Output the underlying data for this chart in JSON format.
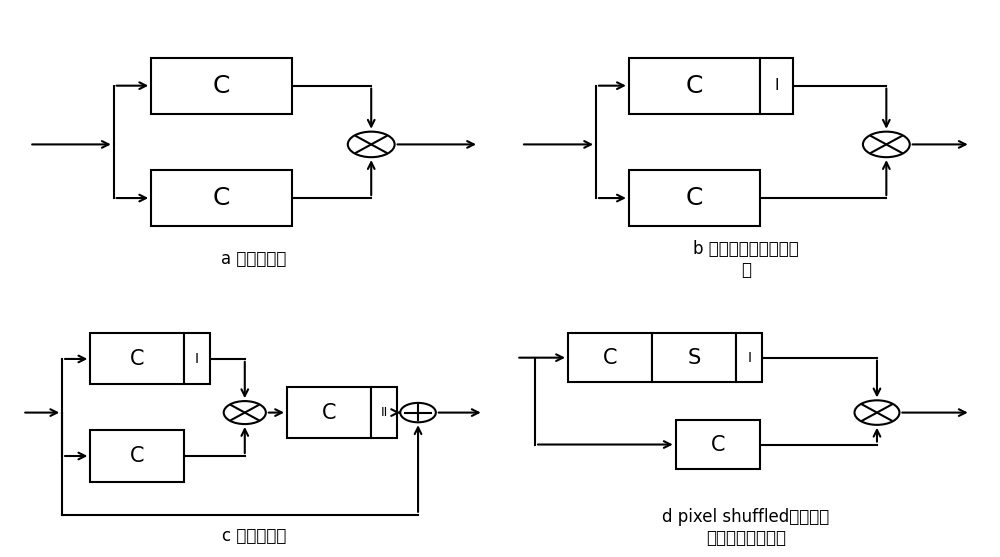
{
  "bg_color": "#ffffff",
  "line_color": "#000000",
  "label_a": "a 门控卷积块",
  "label_b": "b 实例归一化门控卷积\n块",
  "label_c": "c 残差卷积块",
  "label_d": "d pixel shuffled后的实例\n归一化门控卷积块",
  "font_size": 11
}
